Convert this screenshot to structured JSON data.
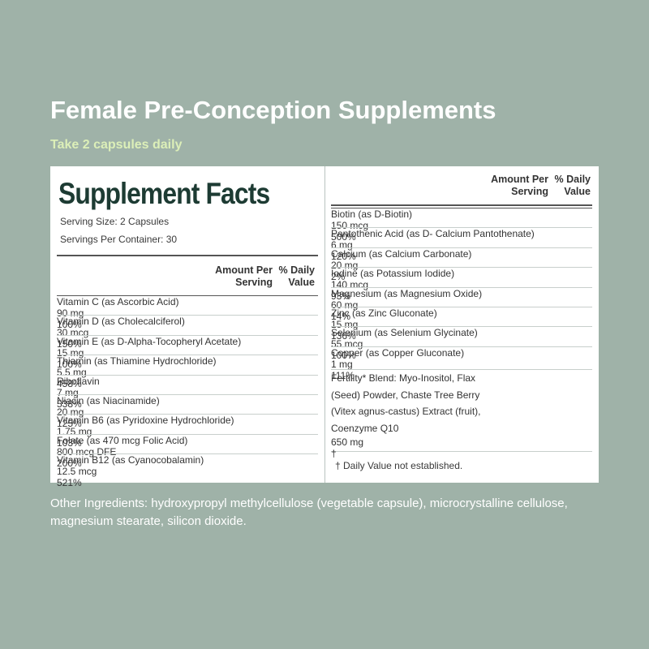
{
  "header": {
    "title": "Female Pre-Conception Supplements",
    "subtitle": "Take 2 capsules daily"
  },
  "facts": {
    "title": "Supplement Facts",
    "serving_size": "Serving Size: 2 Capsules",
    "servings_per_container": "Servings Per Container: 30",
    "left": {
      "header_amount": "Amount Per Serving",
      "header_dv": "% Daily Value",
      "rows": [
        [
          "Vitamin C (as Ascorbic Acid)",
          "90 mg",
          "100%"
        ],
        [
          "Vitamin D (as Cholecalciferol)",
          "30 mcg",
          "150%"
        ],
        [
          "Vitamin E (as D-Alpha-Tocopheryl Acetate)",
          "15 mg",
          "100%"
        ],
        [
          "Thiamin (as Thiamine Hydrochloride)",
          "5.5 mg",
          "458%"
        ],
        [
          "Riboflavin",
          "7 mg",
          "538%"
        ],
        [
          "Niacin (as Niacinamide)",
          "20 mg",
          "125%"
        ],
        [
          "Vitamin B6 (as Pyridoxine Hydrochloride)",
          "1.75 mg",
          "103%"
        ],
        [
          "Folate (as 470 mcg Folic Acid)",
          "800 mcg DFE",
          "200%"
        ],
        [
          "Vitamin B12 (as Cyanocobalamin)",
          "12.5 mcg",
          "521%"
        ]
      ]
    },
    "right": {
      "header_amount": "Amount Per Serving",
      "header_dv": "% Daily Value",
      "rows": [
        [
          "Biotin (as D-Biotin)",
          "150 mcg",
          "500%"
        ],
        [
          "Pantothenic Acid (as D- Calcium Pantothenate)",
          "6 mg",
          "120%"
        ],
        [
          "Calcium (as Calcium Carbonate)",
          "20 mg",
          "2%"
        ],
        [
          "Iodine (as Potassium Iodide)",
          "140 mcg",
          "93%"
        ],
        [
          "Magnesium (as Magnesium Oxide)",
          "60 mg",
          "14%"
        ],
        [
          "Zinc (as Zinc Gluconate)",
          "15 mg",
          "136%"
        ],
        [
          "Selenium (as Selenium Glycinate)",
          "55 mcg",
          "100%"
        ],
        [
          "Copper (as Copper Gluconate)",
          "1 mg",
          "111%"
        ]
      ],
      "blend": [
        "Fertility* Blend: Myo-Inositol, Flax (Seed) Powder, Chaste Tree Berry (Vitex agnus-castus) Extract (fruit), Coenzyme Q10",
        "650 mg",
        "†"
      ],
      "footnote": "† Daily Value not established."
    }
  },
  "other_ingredients": "Other Ingredients: hydroxypropyl methylcellulose (vegetable capsule), microcrystalline cellulose, magnesium stearate, silicon dioxide."
}
